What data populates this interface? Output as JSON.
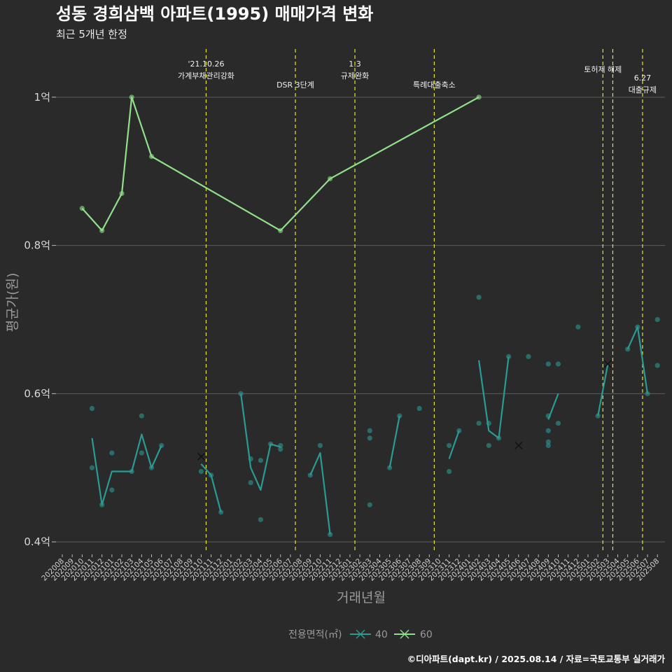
{
  "chart_data": {
    "type": "line",
    "title": "성동 경희삼백 아파트(1995) 매매가격 변화",
    "subtitle": "최근 5개년 한정",
    "xlabel": "거래년월",
    "ylabel": "평균가(원)",
    "ylim": [
      0.385,
      1.065
    ],
    "y_ticks": [
      {
        "value": 0.4,
        "label": "0.4억"
      },
      {
        "value": 0.6,
        "label": "0.6억"
      },
      {
        "value": 0.8,
        "label": "0.8억"
      },
      {
        "value": 1.0,
        "label": "1억"
      }
    ],
    "x_categories": [
      "202008",
      "202009",
      "202010",
      "202011",
      "202012",
      "202101",
      "202102",
      "202103",
      "202104",
      "202105",
      "202106",
      "202107",
      "202108",
      "202109",
      "202110",
      "202111",
      "202112",
      "202201",
      "202202",
      "202203",
      "202204",
      "202205",
      "202206",
      "202207",
      "202208",
      "202209",
      "202210",
      "202211",
      "202212",
      "202301",
      "202302",
      "202303",
      "202304",
      "202305",
      "202306",
      "202307",
      "202308",
      "202309",
      "202310",
      "202311",
      "202312",
      "202401",
      "202402",
      "202403",
      "202404",
      "202405",
      "202406",
      "202407",
      "202408",
      "202409",
      "202410",
      "202411",
      "202412",
      "202501",
      "202502",
      "202503",
      "202504",
      "202505",
      "202506",
      "202507",
      "202508"
    ],
    "grid": true,
    "legend": {
      "title": "전용면적(㎡)",
      "position": "bottom",
      "entries": [
        "40",
        "60"
      ]
    },
    "annotations": [
      {
        "x": 14.5,
        "lines": [
          "'21.10.26",
          "가계부채관리강화"
        ]
      },
      {
        "x": 23.5,
        "lines": [
          "DSR 3단계"
        ]
      },
      {
        "x": 29.5,
        "lines": [
          "1.3",
          "규제완화"
        ]
      },
      {
        "x": 37.5,
        "lines": [
          "특례대출축소"
        ]
      },
      {
        "x": 54.5,
        "lines": [
          "토허제 해제"
        ]
      },
      {
        "x": 55.5,
        "lines": []
      },
      {
        "x": 58.5,
        "lines": [
          "6.27",
          "대출규제"
        ]
      }
    ],
    "series": [
      {
        "name": "40",
        "color": "#2a9a92",
        "segments": [
          [
            [
              3,
              0.54
            ],
            [
              4,
              0.45
            ],
            [
              5,
              0.495
            ],
            [
              6,
              0.495
            ],
            [
              7,
              0.495
            ],
            [
              8,
              0.545
            ],
            [
              9,
              0.5
            ],
            [
              10,
              0.53
            ]
          ],
          [
            [
              14,
              0.505
            ],
            [
              15,
              0.49
            ],
            [
              16,
              0.44
            ]
          ],
          [
            [
              18,
              0.6
            ],
            [
              19,
              0.5
            ],
            [
              20,
              0.47
            ],
            [
              21,
              0.532
            ],
            [
              22,
              0.528
            ]
          ],
          [
            [
              25,
              0.49
            ],
            [
              26,
              0.52
            ],
            [
              27,
              0.41
            ]
          ],
          [
            [
              33,
              0.5
            ],
            [
              34,
              0.57
            ]
          ],
          [
            [
              39,
              0.512
            ],
            [
              40,
              0.55
            ]
          ],
          [
            [
              42,
              0.645
            ],
            [
              43,
              0.55
            ],
            [
              44,
              0.54
            ],
            [
              45,
              0.65
            ]
          ],
          [
            [
              49,
              0.565
            ],
            [
              50,
              0.6
            ]
          ],
          [
            [
              54,
              0.57
            ],
            [
              55,
              0.64
            ]
          ],
          [
            [
              57,
              0.66
            ],
            [
              58,
              0.69
            ],
            [
              59,
              0.6
            ]
          ]
        ],
        "points": [
          [
            3,
            0.58
          ],
          [
            3,
            0.5
          ],
          [
            4,
            0.45
          ],
          [
            5,
            0.52
          ],
          [
            5,
            0.47
          ],
          [
            8,
            0.57
          ],
          [
            8,
            0.52
          ],
          [
            7,
            0.495
          ],
          [
            9,
            0.5
          ],
          [
            10,
            0.53
          ],
          [
            14,
            0.495
          ],
          [
            15,
            0.49
          ],
          [
            16,
            0.44
          ],
          [
            18,
            0.6
          ],
          [
            19,
            0.512
          ],
          [
            19,
            0.48
          ],
          [
            20,
            0.51
          ],
          [
            20,
            0.43
          ],
          [
            21,
            0.532
          ],
          [
            22,
            0.53
          ],
          [
            22,
            0.525
          ],
          [
            25,
            0.49
          ],
          [
            26,
            0.53
          ],
          [
            27,
            0.41
          ],
          [
            31,
            0.55
          ],
          [
            31,
            0.54
          ],
          [
            31,
            0.45
          ],
          [
            33,
            0.5
          ],
          [
            34,
            0.57
          ],
          [
            36,
            0.58
          ],
          [
            39,
            0.53
          ],
          [
            39,
            0.495
          ],
          [
            40,
            0.55
          ],
          [
            42,
            0.73
          ],
          [
            42,
            0.56
          ],
          [
            43,
            0.56
          ],
          [
            43,
            0.53
          ],
          [
            44,
            0.54
          ],
          [
            45,
            0.65
          ],
          [
            47,
            0.65
          ],
          [
            49,
            0.64
          ],
          [
            49,
            0.57
          ],
          [
            49,
            0.55
          ],
          [
            49,
            0.535
          ],
          [
            49,
            0.53
          ],
          [
            50,
            0.64
          ],
          [
            50,
            0.56
          ],
          [
            52,
            0.69
          ],
          [
            54,
            0.57
          ],
          [
            57,
            0.66
          ],
          [
            58,
            0.69
          ],
          [
            59,
            0.6
          ],
          [
            60,
            0.7
          ],
          [
            60,
            0.638
          ]
        ],
        "cross_points": [
          [
            14,
            0.515
          ],
          [
            46,
            0.53
          ],
          [
            55,
            0.64
          ]
        ]
      },
      {
        "name": "60",
        "color": "#90e08a",
        "segments": [
          [
            [
              2,
              0.85
            ],
            [
              4,
              0.82
            ],
            [
              6,
              0.87
            ],
            [
              7,
              1.0
            ],
            [
              9,
              0.92
            ],
            [
              22,
              0.82
            ],
            [
              27,
              0.89
            ],
            [
              42,
              1.0
            ]
          ]
        ],
        "points": [
          [
            2,
            0.85
          ],
          [
            4,
            0.82
          ],
          [
            6,
            0.87
          ],
          [
            7,
            1.0
          ],
          [
            9,
            0.92
          ],
          [
            22,
            0.82
          ],
          [
            27,
            0.89
          ],
          [
            42,
            1.0
          ]
        ],
        "cross_points": []
      }
    ]
  },
  "caption": "©디아파트(dapt.kr) / 2025.08.14 / 자료=국토교통부 실거래가"
}
